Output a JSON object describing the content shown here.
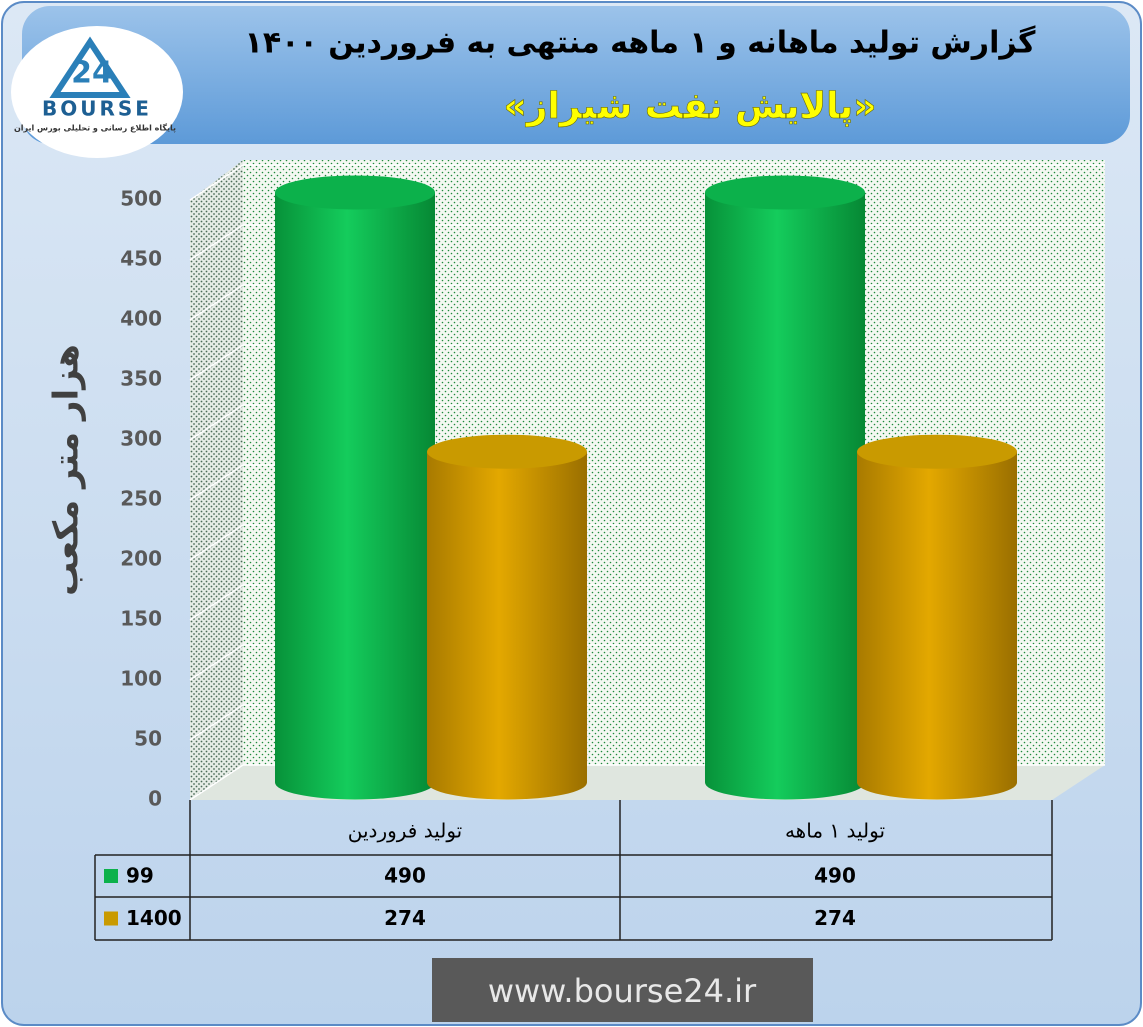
{
  "chart_data": {
    "type": "bar",
    "title": "گزارش تولید ماهانه و ۱ ماهه منتهی به فروردین ۱۴۰۰",
    "subtitle": "«پالایش نفت شیراز»",
    "y_label": "هزار متر مکعب",
    "categories": [
      "تولید فروردین",
      "تولید ۱ ماهه"
    ],
    "series": [
      {
        "name": "99",
        "color": "#0cb14b",
        "values": [
          490,
          490
        ]
      },
      {
        "name": "1400",
        "color": "#c99a00",
        "values": [
          274,
          274
        ]
      }
    ],
    "ylim": [
      0,
      500
    ],
    "yticks": [
      0,
      50,
      100,
      150,
      200,
      250,
      300,
      350,
      400,
      450,
      500
    ],
    "grid": true
  },
  "logo": {
    "mark": "24",
    "name": "BOURSE",
    "tagline": "پایگاه اطلاع رسانی و تحلیلی بورس ایران"
  },
  "footer": "www.bourse24.ir"
}
